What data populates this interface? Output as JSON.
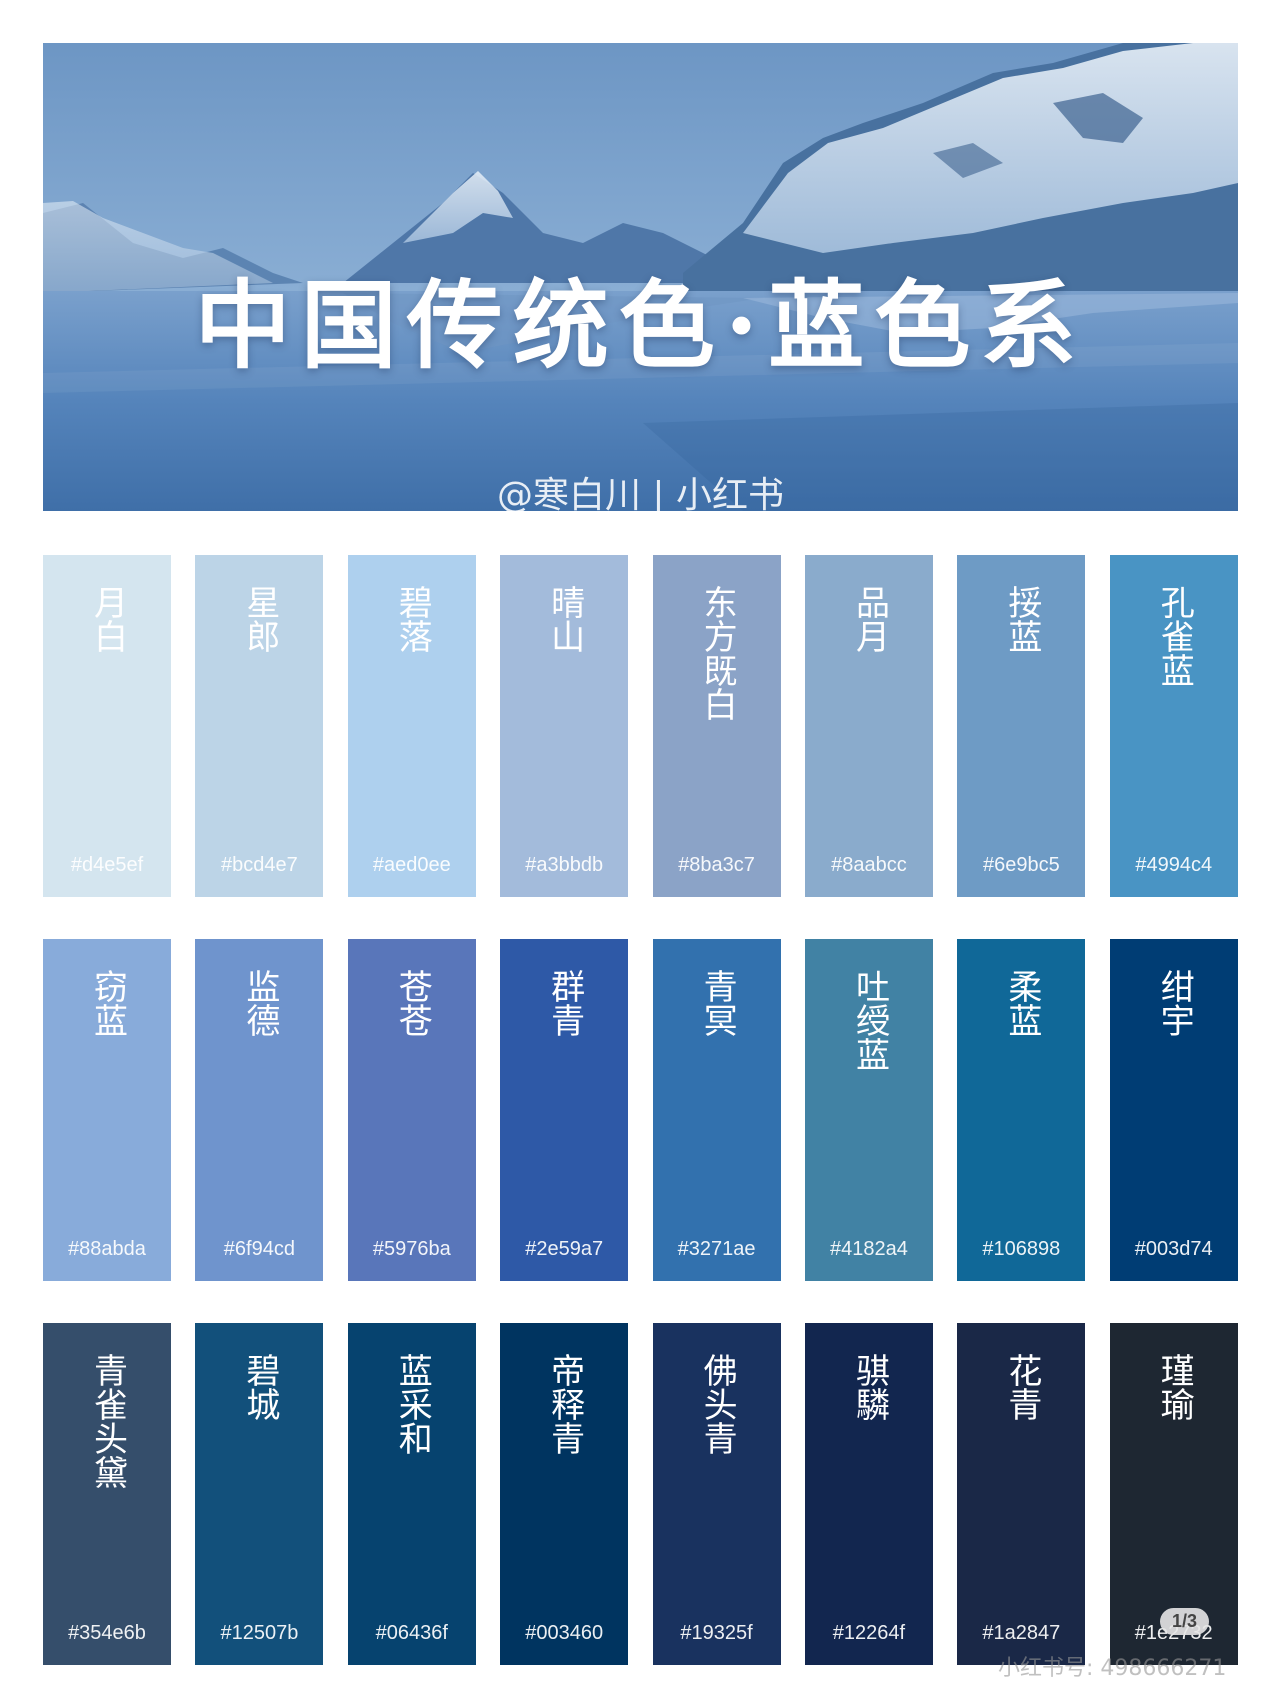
{
  "banner": {
    "title": "中国传统色·蓝色系",
    "credit": "@寒白川 | 小红书"
  },
  "swatches": [
    {
      "name": "月白",
      "hex": "#d4e5ef",
      "color": "#d4e5ef"
    },
    {
      "name": "星郎",
      "hex": "#bcd4e7",
      "color": "#bcd4e7"
    },
    {
      "name": "碧落",
      "hex": "#aed0ee",
      "color": "#aed0ee"
    },
    {
      "name": "晴山",
      "hex": "#a3bbdb",
      "color": "#a3bbdb"
    },
    {
      "name": "东方既白",
      "hex": "#8ba3c7",
      "color": "#8ba3c7"
    },
    {
      "name": "品月",
      "hex": "#8aabcc",
      "color": "#8aabcc"
    },
    {
      "name": "挼蓝",
      "hex": "#6e9bc5",
      "color": "#6e9bc5"
    },
    {
      "name": "孔雀蓝",
      "hex": "#4994c4",
      "color": "#4994c4"
    },
    {
      "name": "窃蓝",
      "hex": "#88abda",
      "color": "#88abda"
    },
    {
      "name": "监德",
      "hex": "#6f94cd",
      "color": "#6f94cd"
    },
    {
      "name": "苍苍",
      "hex": "#5976ba",
      "color": "#5976ba"
    },
    {
      "name": "群青",
      "hex": "#2e59a7",
      "color": "#2e59a7"
    },
    {
      "name": "青冥",
      "hex": "#3271ae",
      "color": "#3271ae"
    },
    {
      "name": "吐绶蓝",
      "hex": "#4182a4",
      "color": "#4182a4"
    },
    {
      "name": "柔蓝",
      "hex": "#106898",
      "color": "#106898"
    },
    {
      "name": "绀宇",
      "hex": "#003d74",
      "color": "#003d74"
    },
    {
      "name": "青雀头黛",
      "hex": "#354e6b",
      "color": "#354e6b"
    },
    {
      "name": "碧城",
      "hex": "#12507b",
      "color": "#12507b"
    },
    {
      "name": "蓝采和",
      "hex": "#06436f",
      "color": "#06436f"
    },
    {
      "name": "帝释青",
      "hex": "#003460",
      "color": "#003460"
    },
    {
      "name": "佛头青",
      "hex": "#19325f",
      "color": "#19325f"
    },
    {
      "name": "骐驎",
      "hex": "#12264f",
      "color": "#12264f"
    },
    {
      "name": "花青",
      "hex": "#1a2847",
      "color": "#1a2847"
    },
    {
      "name": "瑾瑜",
      "hex": "#1e2732",
      "color": "#1e2732"
    }
  ],
  "pager": "1/3",
  "watermark": "小红书号: 498666271"
}
